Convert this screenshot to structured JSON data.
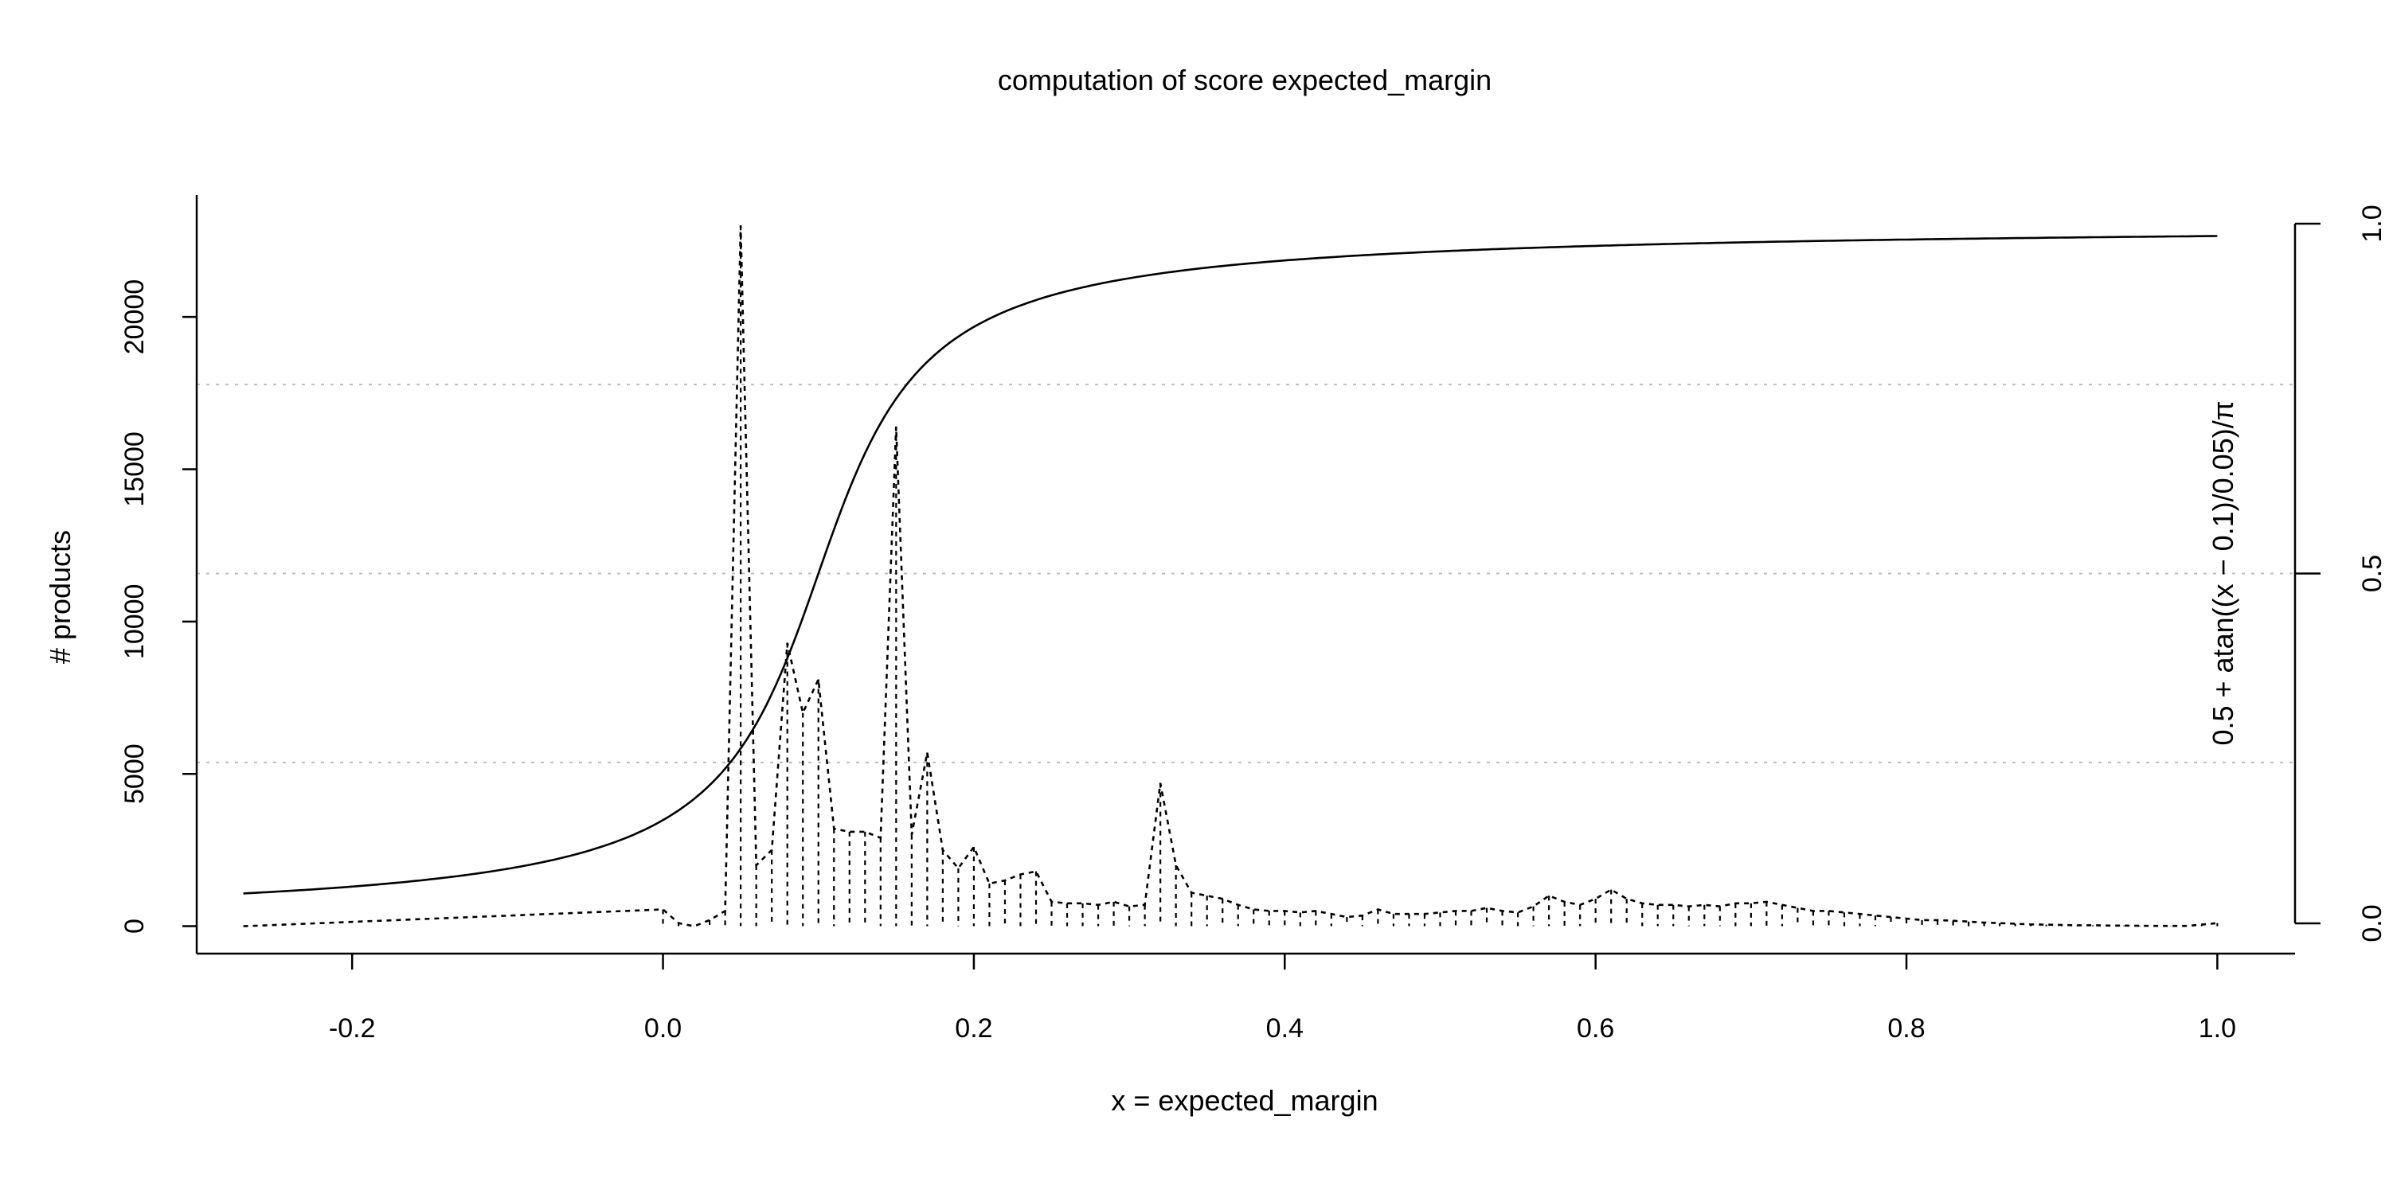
{
  "chart_data": {
    "type": "line",
    "title": "computation of score expected_margin",
    "xlabel": "x = expected_margin",
    "ylabel": "# products",
    "ylabel_right": "0.5 + atan((x − 0.1)/0.05)/π",
    "xlim": [
      -0.3,
      1.05
    ],
    "ylim": [
      -900,
      24000
    ],
    "ylim_right": [
      0,
      1
    ],
    "x_ticks": [
      {
        "value": -0.2,
        "label": "-0.2"
      },
      {
        "value": 0.0,
        "label": "0.0"
      },
      {
        "value": 0.2,
        "label": "0.2"
      },
      {
        "value": 0.4,
        "label": "0.4"
      },
      {
        "value": 0.6,
        "label": "0.6"
      },
      {
        "value": 0.8,
        "label": "0.8"
      },
      {
        "value": 1.0,
        "label": "1.0"
      }
    ],
    "y_ticks": [
      {
        "value": 0,
        "label": "0"
      },
      {
        "value": 5000,
        "label": "5000"
      },
      {
        "value": 10000,
        "label": "10000"
      },
      {
        "value": 15000,
        "label": "15000"
      },
      {
        "value": 20000,
        "label": "20000"
      }
    ],
    "y_ticks_right": [
      {
        "value": 0.0,
        "label": "0.0"
      },
      {
        "value": 0.5,
        "label": "0.5"
      },
      {
        "value": 1.0,
        "label": "1.0"
      }
    ],
    "grid": "horizontal dotted at right-axis 0.23, 0.5, 0.77",
    "grid_levels_right": [
      0.23,
      0.5,
      0.77
    ],
    "series": [
      {
        "role": "histogram",
        "axis": "left",
        "style": "dotted with vertical drops",
        "x": [
          -0.27,
          0.0,
          0.01,
          0.02,
          0.03,
          0.04,
          0.05,
          0.06,
          0.07,
          0.08,
          0.09,
          0.1,
          0.11,
          0.12,
          0.13,
          0.14,
          0.15,
          0.16,
          0.17,
          0.18,
          0.19,
          0.2,
          0.21,
          0.22,
          0.23,
          0.24,
          0.25,
          0.26,
          0.27,
          0.28,
          0.29,
          0.3,
          0.31,
          0.32,
          0.33,
          0.34,
          0.35,
          0.36,
          0.37,
          0.38,
          0.39,
          0.4,
          0.41,
          0.42,
          0.43,
          0.44,
          0.45,
          0.46,
          0.47,
          0.48,
          0.49,
          0.5,
          0.51,
          0.52,
          0.53,
          0.54,
          0.55,
          0.56,
          0.57,
          0.58,
          0.59,
          0.6,
          0.61,
          0.62,
          0.63,
          0.64,
          0.65,
          0.66,
          0.67,
          0.68,
          0.69,
          0.7,
          0.71,
          0.72,
          0.73,
          0.74,
          0.75,
          0.76,
          0.77,
          0.78,
          0.79,
          0.8,
          0.81,
          0.82,
          0.83,
          0.84,
          0.85,
          0.86,
          0.87,
          0.88,
          0.89,
          0.9,
          0.91,
          0.92,
          0.93,
          0.94,
          0.95,
          0.96,
          0.97,
          0.98,
          0.99,
          1.0
        ],
        "values": [
          0,
          550,
          100,
          0,
          200,
          500,
          23000,
          2000,
          2500,
          9300,
          7000,
          8100,
          3200,
          3100,
          3100,
          2900,
          16400,
          3000,
          5700,
          2500,
          1900,
          2600,
          1400,
          1500,
          1700,
          1800,
          800,
          750,
          750,
          700,
          800,
          650,
          700,
          4700,
          2000,
          1100,
          1000,
          900,
          700,
          550,
          500,
          500,
          450,
          500,
          400,
          300,
          350,
          550,
          400,
          400,
          400,
          450,
          500,
          500,
          600,
          500,
          450,
          650,
          1000,
          800,
          700,
          900,
          1200,
          900,
          750,
          700,
          700,
          650,
          700,
          650,
          750,
          750,
          800,
          700,
          600,
          500,
          500,
          450,
          400,
          350,
          300,
          250,
          200,
          200,
          180,
          150,
          120,
          100,
          80,
          60,
          50,
          40,
          30,
          30,
          20,
          20,
          15,
          10,
          10,
          10,
          50,
          100
        ]
      },
      {
        "role": "score",
        "axis": "right",
        "style": "solid",
        "function": "0.5 + atan((x - 0.1)/0.05)/pi",
        "x_start": -0.27,
        "x_end": 1.0
      }
    ]
  }
}
